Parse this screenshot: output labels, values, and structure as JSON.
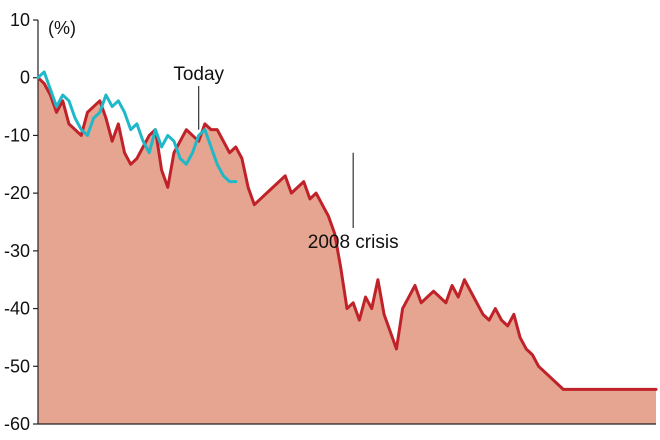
{
  "chart_data": {
    "type": "line",
    "title": "",
    "xlabel": "",
    "ylabel": "",
    "unit_label": "(%)",
    "ylim": [
      -60,
      10
    ],
    "yticks": [
      10,
      0,
      -10,
      -20,
      -30,
      -40,
      -50,
      -60
    ],
    "ytick_labels": [
      "10",
      "0",
      "-10",
      "-20",
      "-30",
      "-40",
      "-50",
      "-60"
    ],
    "xlim": [
      0,
      100
    ],
    "grid": false,
    "legend": "none",
    "colors": {
      "area_fill": "#e6a590",
      "crisis_line": "#c0222a",
      "today_line": "#1fb8c8",
      "axis": "#222222"
    },
    "series": [
      {
        "name": "2008 crisis",
        "color": "#c0222a",
        "fill": true,
        "x": [
          0,
          1,
          2,
          3,
          4,
          5,
          6,
          7,
          8,
          9,
          10,
          11,
          12,
          13,
          14,
          15,
          16,
          17,
          18,
          19,
          20,
          21,
          22,
          23,
          24,
          25,
          26,
          27,
          28,
          29,
          30,
          31,
          32,
          33,
          34,
          35,
          36,
          37,
          38,
          39,
          40,
          41,
          42,
          43,
          44,
          45,
          46,
          47,
          48,
          49,
          50,
          51,
          52,
          53,
          54,
          55,
          56,
          57,
          58,
          59,
          60,
          61,
          62,
          63,
          64,
          65,
          66,
          67,
          68,
          69,
          70,
          71,
          72,
          73,
          74,
          75,
          76,
          77,
          78,
          79,
          80,
          81,
          82,
          83,
          84,
          85,
          86,
          87,
          88,
          89,
          90,
          91,
          92,
          93,
          94,
          95,
          96,
          97,
          98,
          99,
          100
        ],
        "y": [
          0,
          -1,
          -3,
          -6,
          -4,
          -8,
          -9,
          -10,
          -6,
          -5,
          -4,
          -7,
          -11,
          -8,
          -13,
          -15,
          -14,
          -12,
          -10,
          -9,
          -16,
          -19,
          -13,
          -11,
          -9,
          -10,
          -11,
          -8,
          -9,
          -9,
          -11,
          -13,
          -12,
          -14,
          -19,
          -22,
          -21,
          -20,
          -19,
          -18,
          -17,
          -20,
          -19,
          -18,
          -21,
          -20,
          -22,
          -24,
          -27,
          -33,
          -40,
          -39,
          -42,
          -38,
          -40,
          -35,
          -41,
          -44,
          -47,
          -40,
          -38,
          -36,
          -39,
          -38,
          -37,
          -38,
          -39,
          -36,
          -38,
          -35,
          -37,
          -39,
          -41,
          -42,
          -40,
          -42,
          -43,
          -41,
          -45,
          -47,
          -48,
          -50,
          -51,
          -52,
          -53,
          -54,
          -54,
          -54,
          -54,
          -54,
          -54,
          -54,
          -54,
          -54,
          -54,
          -54,
          -54,
          -54,
          -54,
          -54,
          -54
        ]
      },
      {
        "name": "Today",
        "color": "#1fb8c8",
        "fill": false,
        "x": [
          0,
          1,
          2,
          3,
          4,
          5,
          6,
          7,
          8,
          9,
          10,
          11,
          12,
          13,
          14,
          15,
          16,
          17,
          18,
          19,
          20,
          21,
          22,
          23,
          24,
          25,
          26,
          27,
          28,
          29,
          30,
          31,
          32
        ],
        "y": [
          0,
          1,
          -2,
          -5,
          -3,
          -4,
          -7,
          -9,
          -10,
          -7,
          -6,
          -3,
          -5,
          -4,
          -6,
          -9,
          -8,
          -11,
          -13,
          -9,
          -12,
          -10,
          -11,
          -14,
          -15,
          -13,
          -10,
          -9,
          -12,
          -15,
          -17,
          -18,
          -18
        ]
      }
    ],
    "annotations": [
      {
        "text": "Today",
        "series": "Today",
        "x": 26,
        "y": -9
      },
      {
        "text": "2008 crisis",
        "series": "2008 crisis",
        "x": 51,
        "y": -13
      }
    ]
  }
}
